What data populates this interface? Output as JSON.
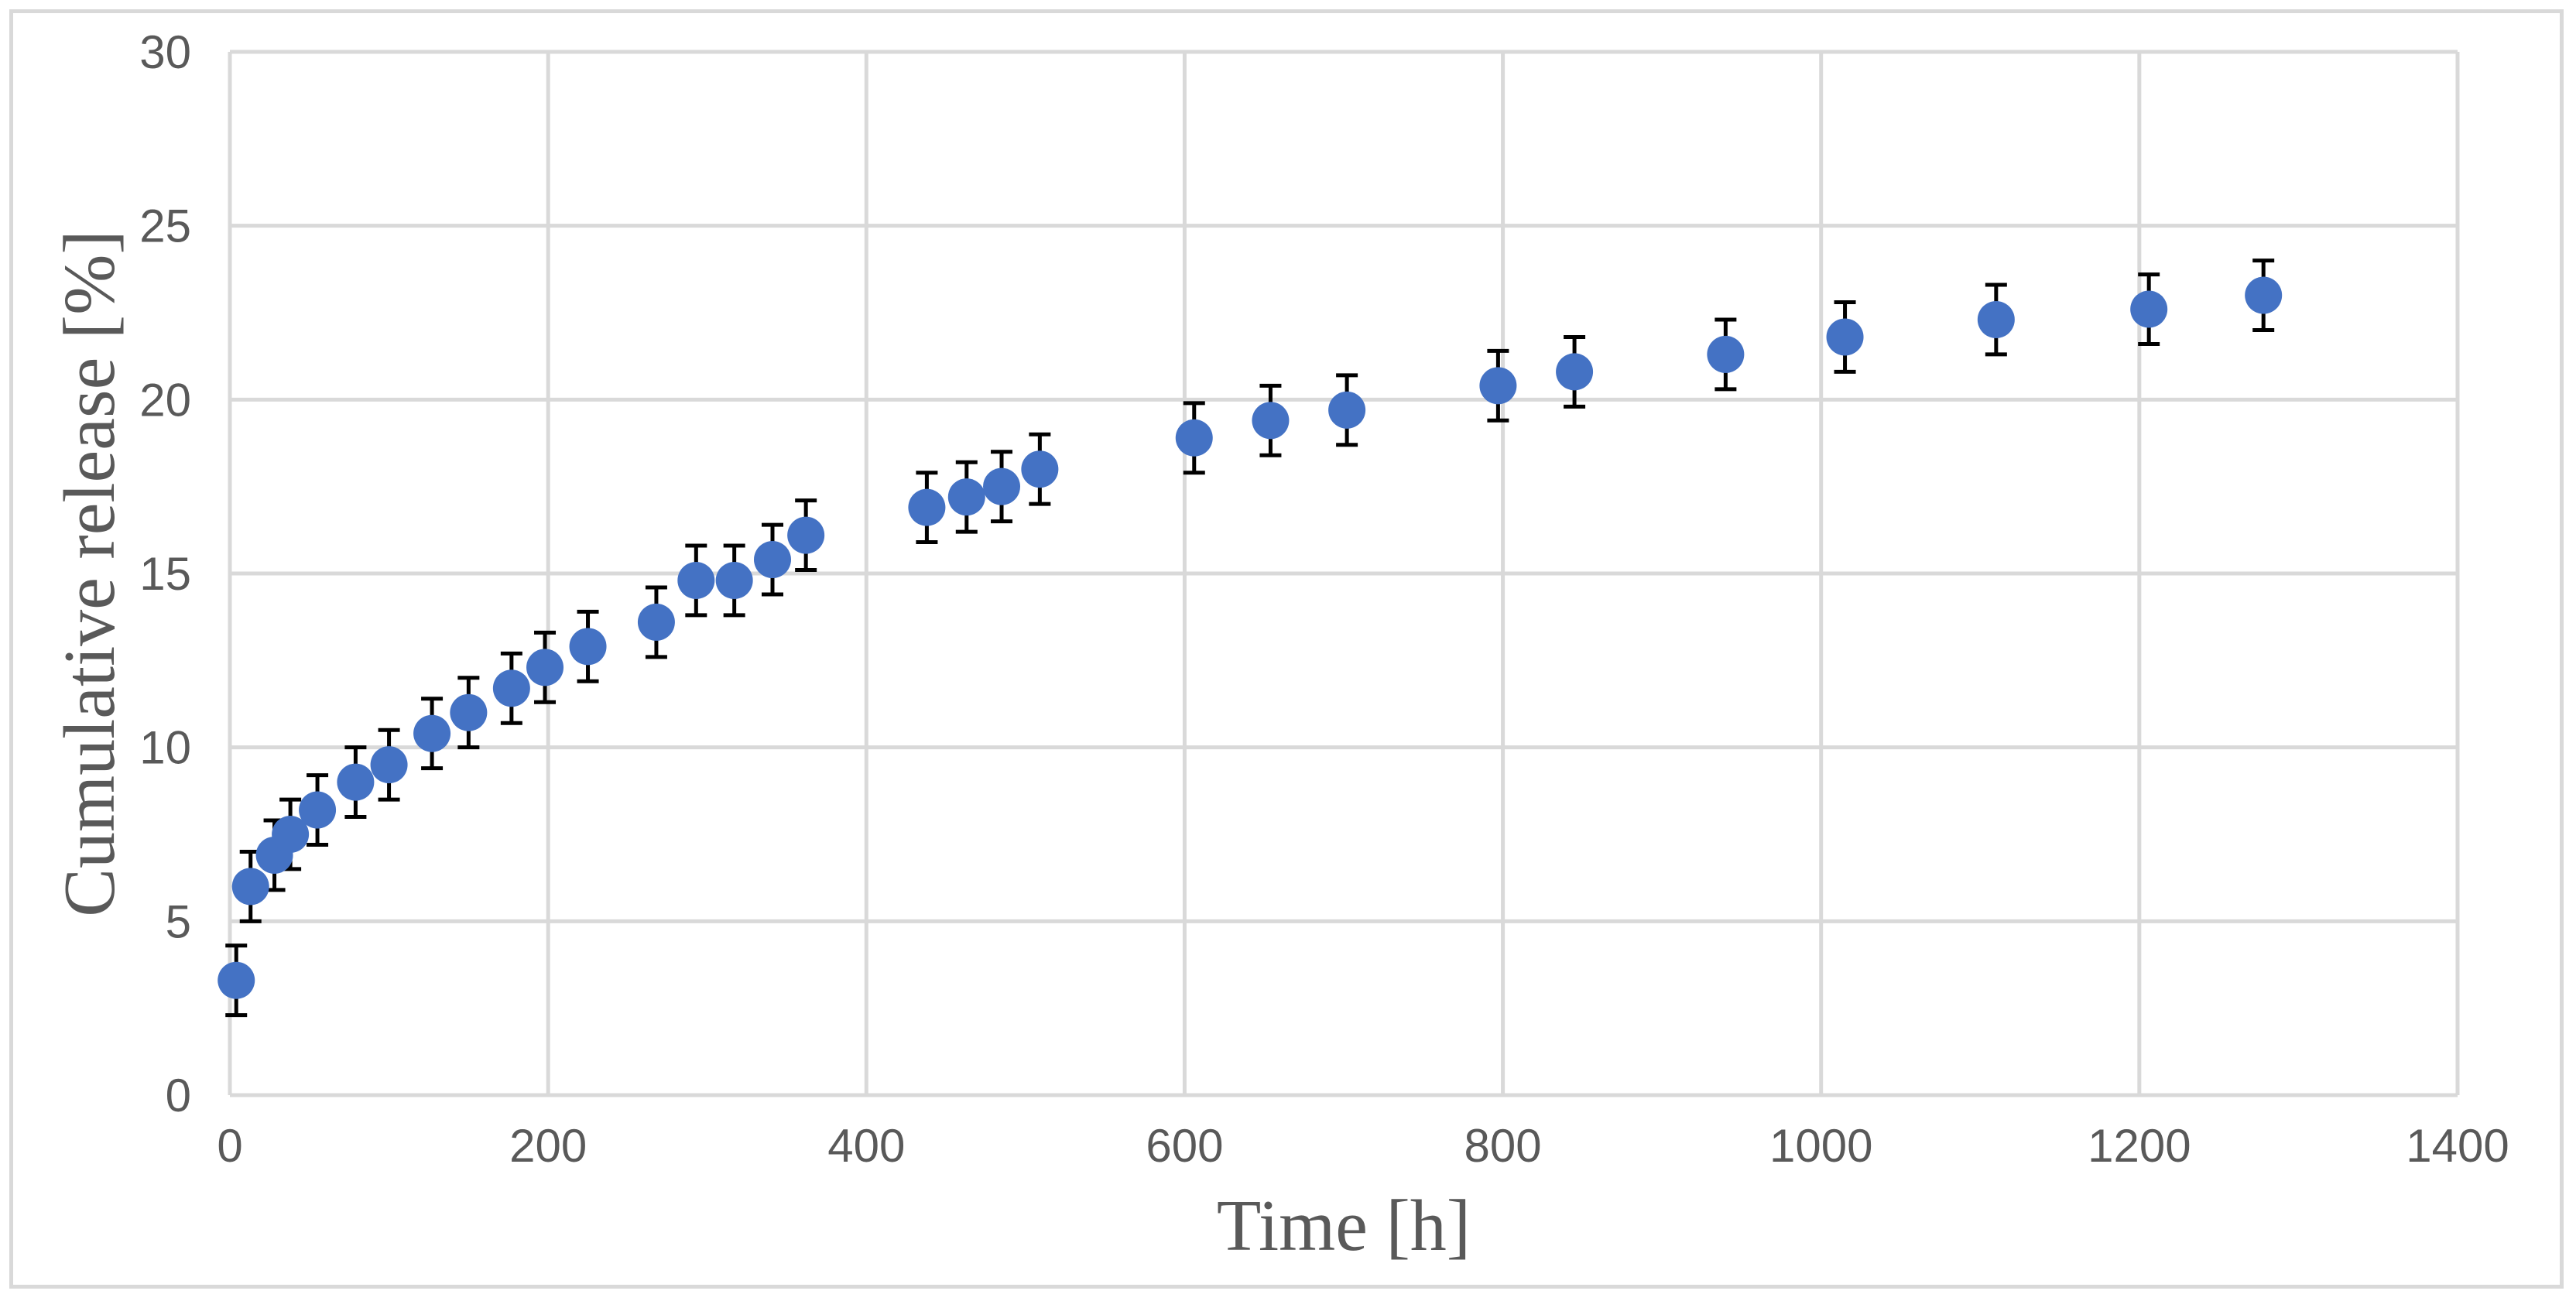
{
  "chart_data": {
    "type": "scatter",
    "xlabel": "Time [h]",
    "ylabel": "Cumulative release [%]",
    "xlim": [
      0,
      1400
    ],
    "ylim": [
      0,
      30
    ],
    "xticks": [
      0,
      200,
      400,
      600,
      800,
      1000,
      1200,
      1400
    ],
    "yticks": [
      0,
      5,
      10,
      15,
      20,
      25,
      30
    ],
    "grid": true,
    "legend": "none",
    "marker_color": "#4472c4",
    "errorbar_color": "#000000",
    "grid_color": "#d9d9d9",
    "error": 1.0,
    "points": [
      {
        "x": 4,
        "y": 3.3
      },
      {
        "x": 13,
        "y": 6.0
      },
      {
        "x": 28,
        "y": 6.9
      },
      {
        "x": 38,
        "y": 7.5
      },
      {
        "x": 55,
        "y": 8.2
      },
      {
        "x": 79,
        "y": 9.0
      },
      {
        "x": 100,
        "y": 9.5
      },
      {
        "x": 127,
        "y": 10.4
      },
      {
        "x": 150,
        "y": 11.0
      },
      {
        "x": 177,
        "y": 11.7
      },
      {
        "x": 198,
        "y": 12.3
      },
      {
        "x": 225,
        "y": 12.9
      },
      {
        "x": 268,
        "y": 13.6
      },
      {
        "x": 293,
        "y": 14.8
      },
      {
        "x": 317,
        "y": 14.8
      },
      {
        "x": 341,
        "y": 15.4
      },
      {
        "x": 362,
        "y": 16.1
      },
      {
        "x": 438,
        "y": 16.9
      },
      {
        "x": 463,
        "y": 17.2
      },
      {
        "x": 485,
        "y": 17.5
      },
      {
        "x": 509,
        "y": 18.0
      },
      {
        "x": 606,
        "y": 18.9
      },
      {
        "x": 654,
        "y": 19.4
      },
      {
        "x": 702,
        "y": 19.7
      },
      {
        "x": 797,
        "y": 20.4
      },
      {
        "x": 845,
        "y": 20.8
      },
      {
        "x": 940,
        "y": 21.3
      },
      {
        "x": 1015,
        "y": 21.8
      },
      {
        "x": 1110,
        "y": 22.3
      },
      {
        "x": 1206,
        "y": 22.6
      },
      {
        "x": 1278,
        "y": 23.0
      }
    ]
  }
}
